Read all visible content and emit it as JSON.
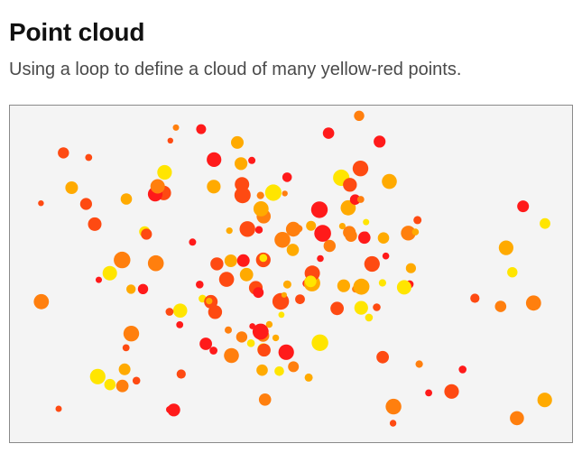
{
  "header": {
    "title": "Point cloud",
    "subtitle": "Using a loop to define a cloud of many yellow-red points."
  },
  "canvas": {
    "background": "#f4f4f4",
    "border_color": "#8a8a8a",
    "point_colors": {
      "red": "#ff1a1a",
      "orange_red": "#fe4a12",
      "orange": "#ff7f0e",
      "amber": "#ffaa00",
      "yellow": "#ffe500"
    },
    "point_count": 160
  }
}
